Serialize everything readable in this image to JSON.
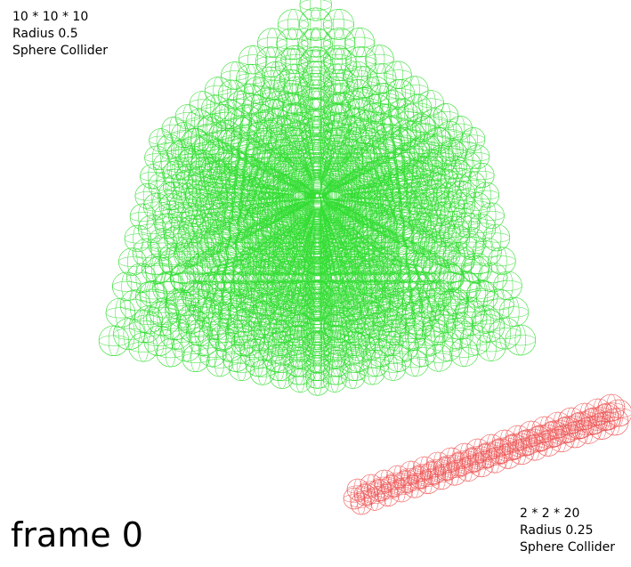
{
  "scene": {
    "background": "#ffffff",
    "big_block": {
      "dims_text": "10 * 10 * 10",
      "radius_text": "Radius 0.5",
      "collider_text": "Sphere Collider",
      "color": "#33dd33",
      "count": [
        10,
        10,
        10
      ],
      "radius": 0.5
    },
    "small_block": {
      "dims_text": "2 * 2 * 20",
      "radius_text": "Radius 0.25",
      "collider_text": "Sphere Collider",
      "color": "#ee5555",
      "count": [
        2,
        2,
        20
      ],
      "radius": 0.25
    },
    "frame_text": "frame 0"
  }
}
